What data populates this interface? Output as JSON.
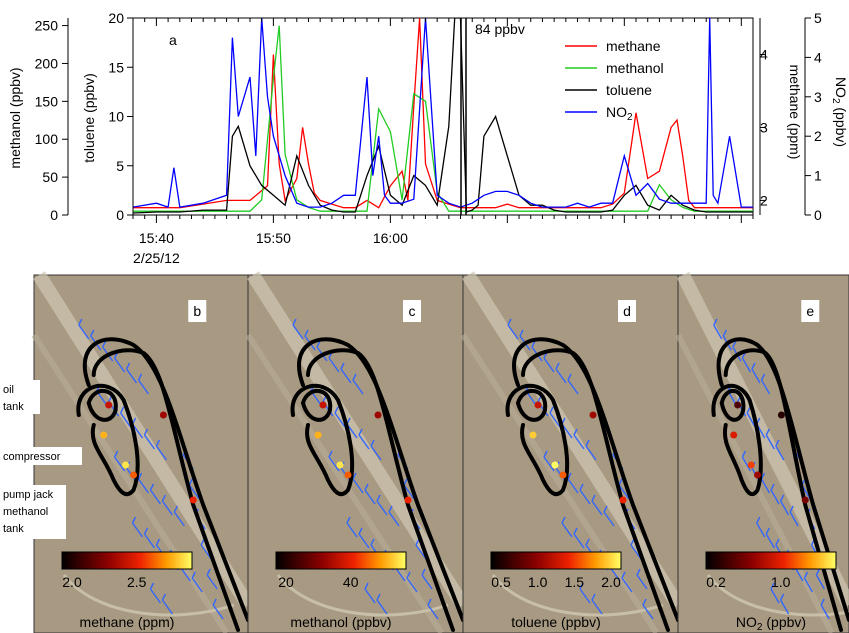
{
  "chart_data": [
    {
      "type": "line",
      "panel": "a",
      "xlabel": "",
      "x_ticks": [
        "15:40",
        "15:50",
        "16:00"
      ],
      "x_date": "2/25/12",
      "left_axes": [
        {
          "label": "methanol (ppbv)",
          "ticks": [
            0,
            50,
            100,
            150,
            200,
            250
          ],
          "ylim": [
            0,
            260
          ]
        },
        {
          "label": "toluene (ppbv)",
          "ticks": [
            0,
            5,
            10,
            15,
            20
          ],
          "ylim": [
            0,
            20
          ]
        }
      ],
      "right_axes": [
        {
          "label": "methane (ppm)",
          "ticks": [
            2,
            3,
            4
          ],
          "ylim": [
            1.8,
            4.5
          ]
        },
        {
          "label": "NO2 (ppbv)",
          "ticks": [
            0,
            1,
            2,
            3,
            4,
            5
          ],
          "ylim": [
            0,
            5
          ]
        }
      ],
      "annotation": "84 ppbv",
      "legend_position": "top-right",
      "series": [
        {
          "name": "methane",
          "color": "#ff0000",
          "unit": "ppm",
          "x": [
            0,
            2,
            4,
            6,
            8,
            10,
            11.5,
            12,
            12.5,
            13,
            14,
            14.5,
            15,
            15.5,
            16,
            17,
            18,
            19,
            20,
            21,
            22,
            23,
            23.5,
            24,
            24.5,
            25,
            26,
            27,
            28,
            29,
            30,
            31,
            32,
            33,
            34,
            35,
            36,
            37,
            38,
            39,
            40,
            41,
            42,
            43,
            44,
            45,
            46,
            46.5,
            47,
            47.5,
            48,
            49,
            50,
            51,
            52,
            53
          ],
          "y": [
            1.9,
            1.9,
            1.9,
            1.95,
            2.0,
            2.0,
            2.2,
            4.0,
            2.5,
            2.0,
            2.3,
            3.0,
            2.5,
            2.1,
            2.0,
            1.95,
            1.9,
            1.9,
            2.0,
            1.9,
            2.2,
            2.4,
            2.0,
            3.3,
            4.5,
            2.5,
            2.0,
            1.95,
            1.9,
            1.9,
            1.9,
            1.9,
            1.95,
            1.9,
            1.9,
            1.9,
            1.9,
            1.9,
            1.9,
            1.9,
            1.9,
            1.95,
            2.1,
            3.2,
            2.3,
            2.4,
            3.0,
            3.1,
            2.6,
            2.0,
            1.9,
            1.9,
            1.9,
            1.9,
            1.9,
            1.9
          ]
        },
        {
          "name": "methanol",
          "color": "#22cc22",
          "unit": "ppbv",
          "x": [
            0,
            2,
            4,
            6,
            8,
            10,
            11,
            12,
            12.5,
            13,
            14,
            15,
            16,
            17,
            18,
            19,
            20,
            21,
            22,
            23,
            24,
            25,
            26,
            27,
            28,
            29,
            30,
            31,
            32,
            33,
            34,
            35,
            36,
            37,
            38,
            39,
            40,
            41,
            42,
            43,
            44,
            45,
            46,
            47,
            48,
            49,
            50,
            51,
            52,
            53
          ],
          "y": [
            5,
            5,
            5,
            5,
            5,
            5,
            20,
            180,
            250,
            80,
            20,
            10,
            5,
            5,
            5,
            5,
            5,
            140,
            110,
            20,
            160,
            150,
            30,
            5,
            5,
            5,
            5,
            5,
            5,
            5,
            5,
            5,
            5,
            5,
            5,
            5,
            5,
            5,
            5,
            5,
            5,
            40,
            20,
            10,
            5,
            5,
            5,
            5,
            5,
            5
          ]
        },
        {
          "name": "toluene",
          "color": "#000000",
          "unit": "ppbv",
          "x": [
            0,
            2,
            4,
            6,
            8,
            8.5,
            9,
            10,
            11,
            12,
            13,
            14,
            15,
            16,
            17,
            18,
            19,
            20,
            21,
            22,
            23,
            24,
            25,
            26,
            27,
            27.5,
            28,
            28.5,
            29,
            29.5,
            30,
            31,
            32,
            33,
            34,
            35,
            36,
            37,
            38,
            39,
            40,
            41,
            42,
            43,
            44,
            45,
            46,
            47,
            48,
            49,
            50,
            51,
            52,
            53
          ],
          "y": [
            0.2,
            0.3,
            0.3,
            0.5,
            0.5,
            8,
            9,
            5,
            3,
            2,
            1,
            6,
            3,
            1,
            0.5,
            0.3,
            0.3,
            4,
            7,
            2,
            1,
            4,
            3,
            1,
            9,
            20,
            20,
            0.3,
            0.5,
            1,
            8,
            10,
            6,
            2,
            1,
            1,
            0.5,
            0.3,
            0.3,
            0.3,
            0.3,
            0.5,
            2,
            3,
            1,
            0.5,
            2,
            1,
            0.5,
            0.3,
            0.3,
            0.3,
            0.3,
            0.3
          ]
        },
        {
          "name": "NO2",
          "color": "#0000ff",
          "unit": "ppbv",
          "x": [
            0,
            2,
            3,
            3.5,
            4,
            6,
            8,
            8.5,
            9,
            10,
            10.5,
            11,
            11.5,
            12,
            13,
            14,
            15,
            16,
            17,
            18,
            19,
            20,
            20.5,
            21,
            21.5,
            22,
            23,
            24,
            25,
            26,
            27,
            28,
            29,
            30,
            31,
            32,
            33,
            34,
            35,
            36,
            37,
            38,
            39,
            40,
            41,
            42,
            43,
            44,
            45,
            46,
            47,
            48,
            49,
            49.3,
            49.6,
            50,
            51,
            52,
            53
          ],
          "y": [
            0.2,
            0.3,
            0.2,
            1.2,
            0.2,
            0.3,
            0.5,
            4.5,
            2.5,
            3.5,
            1.5,
            5.0,
            3.0,
            2.0,
            1.0,
            0.3,
            0.2,
            0.2,
            0.3,
            0.5,
            0.5,
            3.5,
            1.0,
            2.0,
            0.5,
            0.3,
            0.3,
            0.4,
            5.0,
            0.5,
            0.3,
            0.2,
            0.3,
            0.5,
            0.6,
            0.6,
            0.5,
            0.3,
            0.2,
            0.2,
            0.2,
            0.3,
            0.2,
            0.3,
            0.3,
            1.5,
            0.5,
            0.8,
            0.4,
            0.3,
            0.3,
            0.3,
            0.3,
            5.0,
            0.5,
            0.3,
            2.0,
            0.2,
            0.2
          ]
        }
      ]
    },
    {
      "type": "heatmap",
      "panel": "b",
      "colorbar_label": "methane (ppm)",
      "colorbar_ticks": [
        "2.0",
        "2.5"
      ]
    },
    {
      "type": "heatmap",
      "panel": "c",
      "colorbar_label": "methanol (ppbv)",
      "colorbar_ticks": [
        "20",
        "40"
      ]
    },
    {
      "type": "heatmap",
      "panel": "d",
      "colorbar_label": "toluene (ppbv)",
      "colorbar_ticks": [
        "0.5",
        "1.0",
        "1.5",
        "2.0"
      ]
    },
    {
      "type": "heatmap",
      "panel": "e",
      "colorbar_label": "NO2 (ppbv)",
      "colorbar_ticks": [
        "0.2",
        "1.0"
      ]
    }
  ],
  "map_annotations": {
    "oil": "oil",
    "tank1": "tank",
    "compressor": "compressor",
    "pump_jack": "pump jack",
    "methanol": "methanol",
    "tank2": "tank"
  },
  "colors": {
    "map_background": "#a89a82",
    "track": "#000000",
    "wind_barbs": "#3366ff",
    "colormap_low": "#000000",
    "colormap_mid": "#ee2200",
    "colormap_high": "#ffff55"
  }
}
